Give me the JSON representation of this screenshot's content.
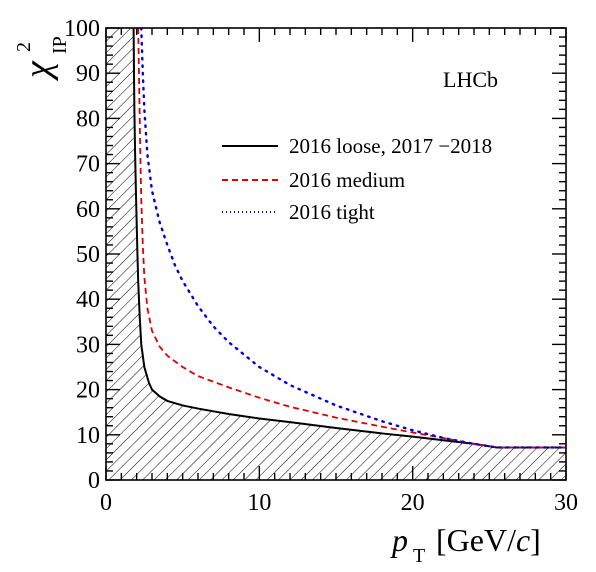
{
  "chart_data": {
    "type": "line",
    "experiment_label": "LHCb",
    "xlabel": {
      "var": "p",
      "sub": "T",
      "unit_open": " [GeV/",
      "unit_var": "c",
      "unit_close": "]"
    },
    "ylabel": {
      "var": "χ",
      "sup": "2",
      "sub": "IP"
    },
    "xlim": [
      0,
      30
    ],
    "ylim": [
      0,
      100
    ],
    "xticks": [
      0,
      10,
      20,
      30
    ],
    "yticks": [
      0,
      10,
      20,
      30,
      40,
      50,
      60,
      70,
      80,
      90,
      100
    ],
    "grid": false,
    "legend_position": "top-right",
    "shaded_region": "below 2016 loose, 2017 −2018 curve (hatched)",
    "series": [
      {
        "name": "2016 loose, 2017 −2018",
        "color": "#000000",
        "style": "solid",
        "x": [
          1.8,
          1.82,
          1.85,
          1.9,
          1.95,
          2.0,
          2.05,
          2.1,
          2.2,
          2.3,
          2.5,
          2.8,
          3.0,
          3.5,
          4.0,
          5.0,
          6.0,
          7.0,
          8.0,
          10.0,
          12.0,
          15.0,
          18.0,
          20.0,
          22.0,
          24.0,
          25.5,
          30.0
        ],
        "y": [
          100,
          92,
          82,
          72,
          64,
          57,
          50,
          44,
          36,
          30,
          25,
          21.5,
          20,
          18.5,
          17.5,
          16.5,
          15.8,
          15.2,
          14.6,
          13.6,
          12.8,
          11.5,
          10.3,
          9.6,
          8.8,
          8.0,
          7.2,
          7.2
        ]
      },
      {
        "name": "2016 medium",
        "color": "#e00000",
        "style": "dashed",
        "x": [
          2.1,
          2.15,
          2.2,
          2.25,
          2.3,
          2.4,
          2.5,
          2.7,
          3.0,
          3.5,
          4.0,
          5.0,
          6.0,
          8.0,
          10.0,
          12.0,
          15.0,
          18.0,
          20.0,
          22.0,
          24.0,
          25.5,
          30.0
        ],
        "y": [
          100,
          90,
          80,
          70,
          62,
          52,
          45,
          38,
          33,
          29.5,
          27.5,
          25,
          23,
          20.5,
          18.2,
          16.2,
          13.8,
          11.8,
          10.5,
          9.3,
          8.0,
          7.2,
          7.2
        ]
      },
      {
        "name": "2016 tight",
        "color": "#0000dd",
        "style": "dotted",
        "x": [
          2.3,
          2.4,
          2.5,
          2.7,
          3.0,
          3.5,
          4.0,
          4.5,
          5.0,
          6.0,
          7.0,
          8.0,
          10.0,
          12.0,
          15.0,
          18.0,
          20.0,
          22.0,
          24.0,
          25.5,
          30.0
        ],
        "y": [
          100,
          90,
          82,
          72,
          64,
          57,
          52,
          47.5,
          44,
          38.5,
          34,
          30.5,
          25,
          21,
          16.5,
          13,
          11,
          9.3,
          8.0,
          7.2,
          7.2
        ]
      }
    ]
  }
}
